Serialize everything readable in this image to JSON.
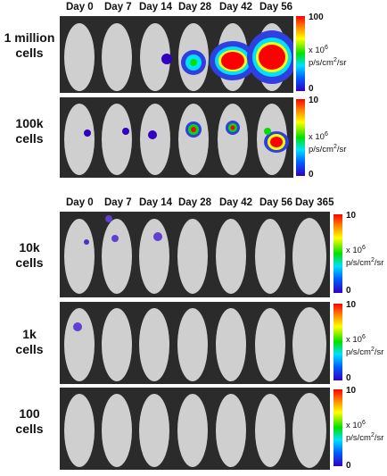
{
  "panel_top": {
    "days": [
      "Day 0",
      "Day 7",
      "Day 14",
      "Day 28",
      "Day 42",
      "Day 56"
    ],
    "rows": [
      {
        "label_line1": "1 million",
        "label_line2": "cells",
        "scale_max": "100",
        "scale_min": "0"
      },
      {
        "label_line1": "100k",
        "label_line2": "cells",
        "scale_max": "10",
        "scale_min": "0"
      }
    ]
  },
  "panel_bottom": {
    "days": [
      "Day 0",
      "Day 7",
      "Day 14",
      "Day 28",
      "Day 42",
      "Day 56",
      "Day 365"
    ],
    "rows": [
      {
        "label_line1": "10k",
        "label_line2": "cells",
        "scale_max": "10",
        "scale_min": "0"
      },
      {
        "label_line1": "1k",
        "label_line2": "cells",
        "scale_max": "10",
        "scale_min": "0"
      },
      {
        "label_line1": "100",
        "label_line2": "cells",
        "scale_max": "10",
        "scale_min": "0"
      }
    ]
  },
  "scale_unit_line1": "x 10",
  "scale_unit_exp": "6",
  "scale_unit_line2": "p/s/cm",
  "scale_unit_sq": "2",
  "scale_unit_line3": "/sr",
  "colors": {
    "background": "#ffffff",
    "strip": "#2b2b2b",
    "mouse": "#cfcfcf",
    "signal_high": "#ff0000",
    "signal_low": "#3000c0"
  }
}
